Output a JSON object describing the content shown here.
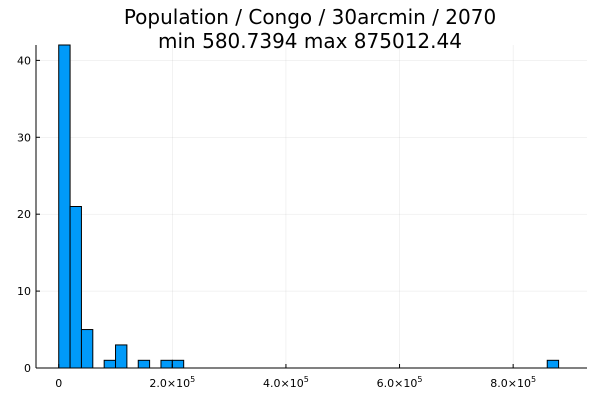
{
  "chart_data": {
    "type": "bar",
    "title_line1": "Population / Congo / 30arcmin / 2070",
    "title_line2": "min 580.7394  max 875012.44",
    "xlabel": "",
    "ylabel": "",
    "xlim": [
      -40000,
      930000
    ],
    "ylim": [
      0,
      42
    ],
    "grid": true,
    "legend": "none",
    "bar_color": "#009af9",
    "bin_edges": [
      0,
      20000,
      40000,
      60000,
      80000,
      100000,
      120000,
      140000,
      160000,
      180000,
      200000,
      220000,
      240000,
      260000,
      280000,
      300000,
      320000,
      340000,
      360000,
      380000,
      400000,
      420000,
      440000,
      460000,
      480000,
      500000,
      520000,
      540000,
      560000,
      580000,
      600000,
      620000,
      640000,
      660000,
      680000,
      700000,
      720000,
      740000,
      760000,
      780000,
      800000,
      820000,
      840000,
      860000,
      880000
    ],
    "counts": [
      42,
      21,
      5,
      0,
      1,
      3,
      0,
      1,
      0,
      1,
      1,
      0,
      0,
      0,
      0,
      0,
      0,
      0,
      0,
      0,
      0,
      0,
      0,
      0,
      0,
      0,
      0,
      0,
      0,
      0,
      0,
      0,
      0,
      0,
      0,
      0,
      0,
      0,
      0,
      0,
      0,
      0,
      0,
      1
    ],
    "x_ticks": [
      {
        "value": 0,
        "mantissa": "0",
        "exp": ""
      },
      {
        "value": 200000,
        "mantissa": "2.0×10",
        "exp": "5"
      },
      {
        "value": 400000,
        "mantissa": "4.0×10",
        "exp": "5"
      },
      {
        "value": 600000,
        "mantissa": "6.0×10",
        "exp": "5"
      },
      {
        "value": 800000,
        "mantissa": "8.0×10",
        "exp": "5"
      }
    ],
    "y_ticks": [
      {
        "value": 0,
        "label": "0"
      },
      {
        "value": 10,
        "label": "10"
      },
      {
        "value": 20,
        "label": "20"
      },
      {
        "value": 30,
        "label": "30"
      },
      {
        "value": 40,
        "label": "40"
      }
    ]
  }
}
